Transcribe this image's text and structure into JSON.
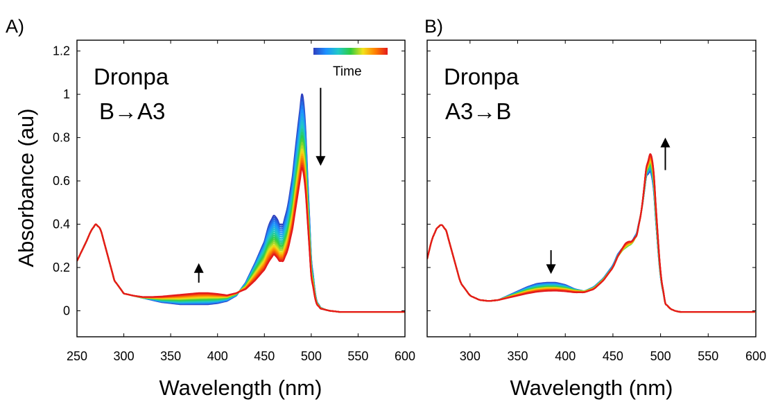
{
  "figure": {
    "ylabel": "Absorbance (au)"
  },
  "chart_data": [
    {
      "type": "line",
      "panel_label": "A)",
      "annotation": [
        "Dronpa",
        "B→A3"
      ],
      "legend": {
        "label": "Time",
        "colors": [
          "#2e3fbf",
          "#1e90ff",
          "#20c9c9",
          "#2ecc40",
          "#f2e21b",
          "#ff7f00",
          "#e41a1c"
        ],
        "placement": "top-right"
      },
      "xlabel": "Wavelength (nm)",
      "ylabel": "Absorbance (au)",
      "xlim": [
        250,
        600
      ],
      "ylim": [
        -0.12,
        1.25
      ],
      "xticks": [
        250,
        300,
        350,
        400,
        450,
        500,
        550,
        600
      ],
      "yticks": [
        0,
        0.2,
        0.4,
        0.6,
        0.8,
        1,
        1.2
      ],
      "ytick_labels": [
        "0",
        "0.2",
        "0.4",
        "0.6",
        "0.8",
        "1",
        "1.2"
      ],
      "grid": false,
      "arrows": [
        {
          "x": 380,
          "y_from": 0.13,
          "y_to": 0.22,
          "direction": "up"
        },
        {
          "x": 510,
          "y_from": 1.03,
          "y_to": 0.67,
          "direction": "down"
        }
      ],
      "x": [
        250,
        260,
        265,
        270,
        275,
        280,
        290,
        300,
        310,
        320,
        330,
        340,
        350,
        360,
        370,
        380,
        390,
        400,
        410,
        420,
        430,
        440,
        450,
        455,
        460,
        463,
        466,
        470,
        475,
        480,
        485,
        490,
        493,
        496,
        500,
        505,
        510,
        515,
        520,
        530,
        550,
        600
      ],
      "series": [
        {
          "values": [
            0.23,
            0.32,
            0.37,
            0.4,
            0.38,
            0.3,
            0.14,
            0.08,
            0.07,
            0.06,
            0.05,
            0.04,
            0.035,
            0.03,
            0.03,
            0.03,
            0.03,
            0.035,
            0.045,
            0.07,
            0.13,
            0.22,
            0.32,
            0.4,
            0.44,
            0.43,
            0.4,
            0.4,
            0.48,
            0.62,
            0.82,
            1.0,
            0.93,
            0.62,
            0.24,
            0.05,
            0.015,
            0.005,
            0.0,
            -0.005,
            -0.005,
            -0.005
          ]
        },
        {
          "values": [
            0.23,
            0.32,
            0.37,
            0.4,
            0.38,
            0.3,
            0.14,
            0.08,
            0.07,
            0.06,
            0.055,
            0.048,
            0.045,
            0.042,
            0.043,
            0.044,
            0.045,
            0.048,
            0.055,
            0.075,
            0.12,
            0.2,
            0.28,
            0.34,
            0.37,
            0.36,
            0.33,
            0.33,
            0.4,
            0.52,
            0.7,
            0.86,
            0.8,
            0.54,
            0.21,
            0.045,
            0.013,
            0.005,
            0.0,
            -0.005,
            -0.005,
            -0.005
          ]
        },
        {
          "values": [
            0.23,
            0.32,
            0.37,
            0.4,
            0.38,
            0.3,
            0.14,
            0.08,
            0.07,
            0.062,
            0.06,
            0.058,
            0.058,
            0.058,
            0.06,
            0.062,
            0.063,
            0.063,
            0.065,
            0.08,
            0.11,
            0.17,
            0.23,
            0.28,
            0.3,
            0.29,
            0.27,
            0.27,
            0.33,
            0.44,
            0.6,
            0.74,
            0.69,
            0.47,
            0.18,
            0.04,
            0.012,
            0.005,
            0.0,
            -0.005,
            -0.005,
            -0.005
          ]
        },
        {
          "values": [
            0.23,
            0.32,
            0.37,
            0.4,
            0.38,
            0.3,
            0.14,
            0.08,
            0.07,
            0.064,
            0.064,
            0.066,
            0.07,
            0.074,
            0.078,
            0.082,
            0.082,
            0.078,
            0.072,
            0.082,
            0.1,
            0.14,
            0.19,
            0.23,
            0.26,
            0.25,
            0.23,
            0.23,
            0.28,
            0.38,
            0.52,
            0.66,
            0.61,
            0.42,
            0.16,
            0.035,
            0.01,
            0.005,
            0.0,
            -0.005,
            -0.005,
            -0.005
          ]
        }
      ]
    },
    {
      "type": "line",
      "panel_label": "B)",
      "annotation": [
        "Dronpa",
        "A3→B"
      ],
      "xlabel": "Wavelength (nm)",
      "xlim": [
        255,
        600
      ],
      "ylim": [
        -0.12,
        1.25
      ],
      "xticks": [
        300,
        350,
        400,
        450,
        500,
        550,
        600
      ],
      "grid": false,
      "arrows": [
        {
          "x": 385,
          "y_from": 0.28,
          "y_to": 0.17,
          "direction": "down"
        },
        {
          "x": 505,
          "y_from": 0.65,
          "y_to": 0.8,
          "direction": "up"
        }
      ],
      "x": [
        255,
        260,
        265,
        270,
        275,
        280,
        290,
        300,
        310,
        320,
        330,
        340,
        350,
        360,
        370,
        380,
        390,
        400,
        410,
        420,
        430,
        440,
        450,
        455,
        460,
        463,
        466,
        470,
        475,
        480,
        485,
        490,
        493,
        496,
        500,
        505,
        510,
        515,
        520,
        530,
        550,
        600
      ],
      "series": [
        {
          "values": [
            0.24,
            0.33,
            0.38,
            0.4,
            0.37,
            0.29,
            0.13,
            0.07,
            0.05,
            0.045,
            0.05,
            0.07,
            0.09,
            0.11,
            0.125,
            0.13,
            0.13,
            0.12,
            0.1,
            0.09,
            0.11,
            0.15,
            0.21,
            0.26,
            0.29,
            0.3,
            0.31,
            0.32,
            0.36,
            0.46,
            0.62,
            0.65,
            0.55,
            0.36,
            0.15,
            0.035,
            0.01,
            0.0,
            -0.005,
            -0.005,
            -0.005,
            -0.005
          ]
        },
        {
          "values": [
            0.24,
            0.33,
            0.38,
            0.4,
            0.37,
            0.29,
            0.13,
            0.07,
            0.05,
            0.045,
            0.05,
            0.065,
            0.08,
            0.095,
            0.105,
            0.11,
            0.11,
            0.105,
            0.095,
            0.09,
            0.105,
            0.145,
            0.2,
            0.25,
            0.28,
            0.29,
            0.3,
            0.31,
            0.35,
            0.46,
            0.64,
            0.69,
            0.59,
            0.39,
            0.16,
            0.035,
            0.01,
            0.0,
            -0.005,
            -0.005,
            -0.005,
            -0.005
          ]
        },
        {
          "values": [
            0.24,
            0.33,
            0.38,
            0.4,
            0.37,
            0.29,
            0.13,
            0.07,
            0.05,
            0.045,
            0.05,
            0.06,
            0.07,
            0.08,
            0.088,
            0.092,
            0.093,
            0.09,
            0.085,
            0.085,
            0.1,
            0.14,
            0.2,
            0.25,
            0.29,
            0.31,
            0.32,
            0.32,
            0.35,
            0.46,
            0.66,
            0.74,
            0.63,
            0.42,
            0.17,
            0.035,
            0.01,
            0.0,
            -0.005,
            -0.005,
            -0.005,
            -0.005
          ]
        }
      ]
    }
  ]
}
